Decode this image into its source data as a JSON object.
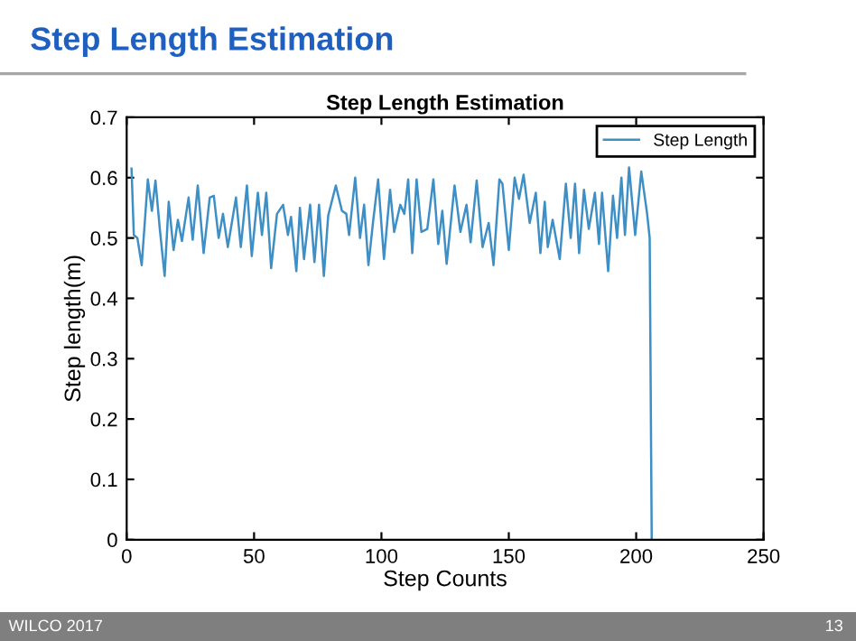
{
  "chart_data": {
    "type": "line",
    "title": "Step Length Estimation",
    "xlabel": "Step Counts",
    "ylabel": "Step length(m)",
    "annotations": [
      "Step Length Estimation",
      "WILCO 2017",
      "13"
    ],
    "xlim": [
      0,
      250
    ],
    "xticks": [
      0,
      50,
      100,
      150,
      200,
      250
    ],
    "ylim": [
      0,
      0.7
    ],
    "yticks": [
      0,
      0.1,
      0.2,
      0.3,
      0.4,
      0.5,
      0.6,
      0.7
    ],
    "grid": false,
    "legend": "top right",
    "marker": "none",
    "line_style": "solid",
    "series": [
      {
        "name": "Step Length",
        "color": "#3d8fc6",
        "x": [
          1.9,
          2.8,
          4.2,
          5.9,
          8.3,
          9.9,
          11.3,
          13,
          14.9,
          16.5,
          18.4,
          20.1,
          21.7,
          24.3,
          25.9,
          27.9,
          30.2,
          32.6,
          34.2,
          36.1,
          37.8,
          39.7,
          42.9,
          44.8,
          47.2,
          49.1,
          51.5,
          53.1,
          54.8,
          56.7,
          59,
          61.4,
          63.3,
          64.5,
          66.6,
          68,
          69.6,
          72,
          73.7,
          75.5,
          77.4,
          79.1,
          82.1,
          84.5,
          86.2,
          87.3,
          89.7,
          91.6,
          93.2,
          94.9,
          96.8,
          98.7,
          101,
          103.4,
          105,
          107.4,
          109,
          110.5,
          112.1,
          113.8,
          115.7,
          118,
          120.4,
          122.3,
          123.9,
          125.6,
          128.7,
          131,
          133.4,
          135,
          137.4,
          139.7,
          142.1,
          144,
          146.3,
          147.5,
          150,
          152.3,
          154,
          155.8,
          158.2,
          160.6,
          162.4,
          164.1,
          165.3,
          167.2,
          170,
          172.4,
          174.3,
          176,
          177.6,
          179.5,
          181.4,
          183.8,
          185.4,
          186.6,
          189,
          190.9,
          192.5,
          194.2,
          195.6,
          197.2,
          199.6,
          202,
          204.3,
          205.3,
          206.1
        ],
        "values": [
          0.615,
          0.505,
          0.5,
          0.455,
          0.597,
          0.545,
          0.595,
          0.515,
          0.437,
          0.56,
          0.48,
          0.53,
          0.495,
          0.567,
          0.497,
          0.587,
          0.475,
          0.567,
          0.57,
          0.5,
          0.54,
          0.485,
          0.567,
          0.485,
          0.587,
          0.47,
          0.575,
          0.505,
          0.575,
          0.45,
          0.54,
          0.555,
          0.505,
          0.535,
          0.445,
          0.55,
          0.465,
          0.555,
          0.46,
          0.555,
          0.437,
          0.537,
          0.587,
          0.545,
          0.54,
          0.505,
          0.6,
          0.5,
          0.555,
          0.455,
          0.53,
          0.597,
          0.465,
          0.58,
          0.51,
          0.555,
          0.54,
          0.597,
          0.475,
          0.597,
          0.51,
          0.515,
          0.597,
          0.49,
          0.545,
          0.457,
          0.587,
          0.51,
          0.555,
          0.493,
          0.595,
          0.485,
          0.525,
          0.455,
          0.597,
          0.59,
          0.48,
          0.6,
          0.565,
          0.605,
          0.525,
          0.575,
          0.475,
          0.56,
          0.485,
          0.53,
          0.465,
          0.59,
          0.5,
          0.59,
          0.475,
          0.58,
          0.515,
          0.575,
          0.49,
          0.575,
          0.445,
          0.57,
          0.5,
          0.6,
          0.505,
          0.617,
          0.505,
          0.61,
          0.54,
          0.5,
          0
        ]
      }
    ]
  }
}
